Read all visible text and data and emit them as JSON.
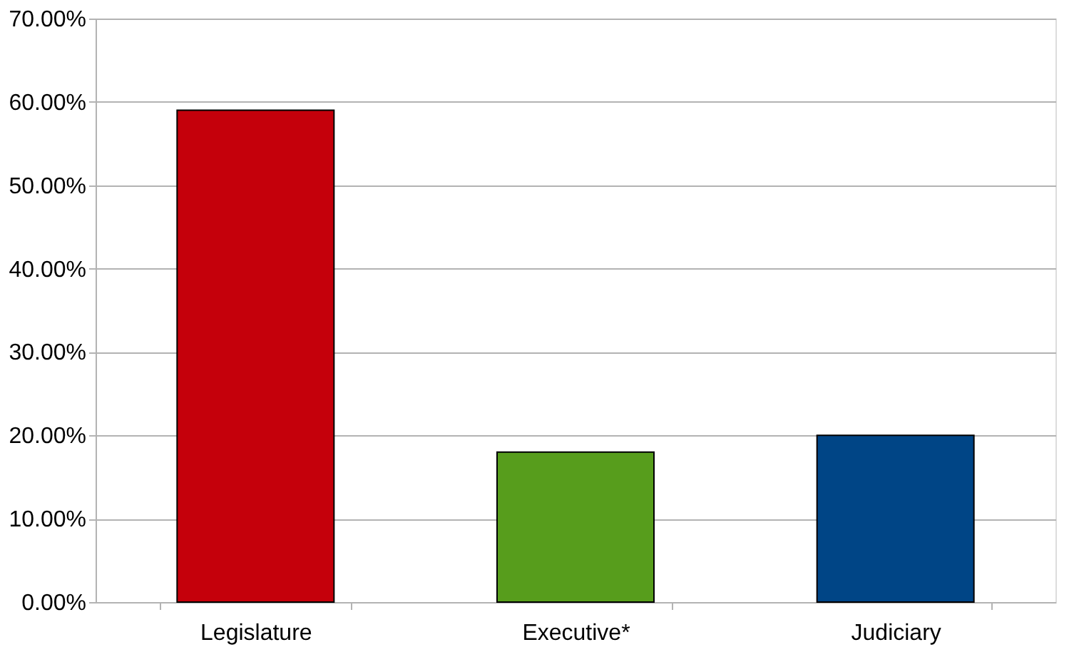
{
  "chart_data": {
    "type": "bar",
    "categories": [
      "Legislature",
      "Executive*",
      "Judiciary"
    ],
    "values": [
      59,
      18,
      20
    ],
    "colors": [
      "#c5000b",
      "#579d1c",
      "#004586"
    ],
    "ylim": [
      0,
      70
    ],
    "yticks": [
      {
        "value": 0,
        "label": "0.00%"
      },
      {
        "value": 10,
        "label": "10.00%"
      },
      {
        "value": 20,
        "label": "20.00%"
      },
      {
        "value": 30,
        "label": "30.00%"
      },
      {
        "value": 40,
        "label": "40.00%"
      },
      {
        "value": 50,
        "label": "50.00%"
      },
      {
        "value": 60,
        "label": "60.00%"
      },
      {
        "value": 70,
        "label": "70.00%"
      }
    ],
    "grid": "y"
  }
}
